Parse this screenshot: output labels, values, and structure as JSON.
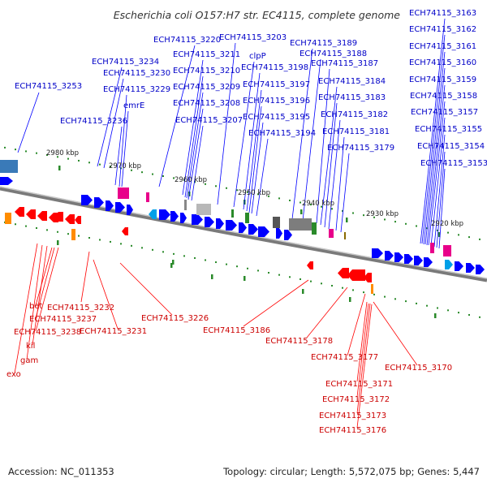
{
  "title": "Escherichia coli O157:H7 str. EC4115, complete genome",
  "footer": {
    "accession": "Accession: NC_011353",
    "summary": "Topology: circular; Length: 5,572,075 bp; Genes: 5,447"
  },
  "colors": {
    "forward_gene": "#0000ff",
    "reverse_gene": "#ff0000",
    "forward_label": "#0000c8",
    "reverse_label": "#cc0000",
    "rna": "#e8008a",
    "other_feature": "#2a8a2a"
  },
  "scale_labels": [
    "2980 kbp",
    "2970 kbp",
    "2960 kbp",
    "2950 kbp",
    "2940 kbp",
    "2930 kbp",
    "2920 kbp"
  ],
  "upper_labels": [
    {
      "text": "ECH74115_3253"
    },
    {
      "text": "ECH74115_3234"
    },
    {
      "text": "ECH74115_3230"
    },
    {
      "text": "ECH74115_3229"
    },
    {
      "text": "emrE"
    },
    {
      "text": "ECH74115_3236"
    },
    {
      "text": "ECH74115_3220"
    },
    {
      "text": "ECH74115_3211"
    },
    {
      "text": "ECH74115_3210"
    },
    {
      "text": "ECH74115_3209"
    },
    {
      "text": "ECH74115_3208"
    },
    {
      "text": "ECH74115_3207"
    },
    {
      "text": "ECH74115_3203"
    },
    {
      "text": "clpP"
    },
    {
      "text": "ECH74115_3198"
    },
    {
      "text": "ECH74115_3197"
    },
    {
      "text": "ECH74115_3196"
    },
    {
      "text": "ECH74115_3195"
    },
    {
      "text": "ECH74115_3194"
    },
    {
      "text": "ECH74115_3189"
    },
    {
      "text": "ECH74115_3188"
    },
    {
      "text": "ECH74115_3187"
    },
    {
      "text": "ECH74115_3184"
    },
    {
      "text": "ECH74115_3183"
    },
    {
      "text": "ECH74115_3182"
    },
    {
      "text": "ECH74115_3181"
    },
    {
      "text": "ECH74115_3179"
    },
    {
      "text": "ECH74115_3163"
    },
    {
      "text": "ECH74115_3162"
    },
    {
      "text": "ECH74115_3161"
    },
    {
      "text": "ECH74115_3160"
    },
    {
      "text": "ECH74115_3159"
    },
    {
      "text": "ECH74115_3158"
    },
    {
      "text": "ECH74115_3157"
    },
    {
      "text": "ECH74115_3155"
    },
    {
      "text": "ECH74115_3154"
    },
    {
      "text": "ECH74115_3153"
    }
  ],
  "lower_labels": [
    {
      "text": "ECH74115_3232"
    },
    {
      "text": "bet"
    },
    {
      "text": "ECH74115_3237"
    },
    {
      "text": "ECH74115_3238"
    },
    {
      "text": "ECH74115_3231"
    },
    {
      "text": "kil"
    },
    {
      "text": "gam"
    },
    {
      "text": "exo"
    },
    {
      "text": "ECH74115_3226"
    },
    {
      "text": "ECH74115_3186"
    },
    {
      "text": "ECH74115_3178"
    },
    {
      "text": "ECH74115_3177"
    },
    {
      "text": "ECH74115_3170"
    },
    {
      "text": "ECH74115_3171"
    },
    {
      "text": "ECH74115_3172"
    },
    {
      "text": "ECH74115_3173"
    },
    {
      "text": "ECH74115_3176"
    }
  ]
}
